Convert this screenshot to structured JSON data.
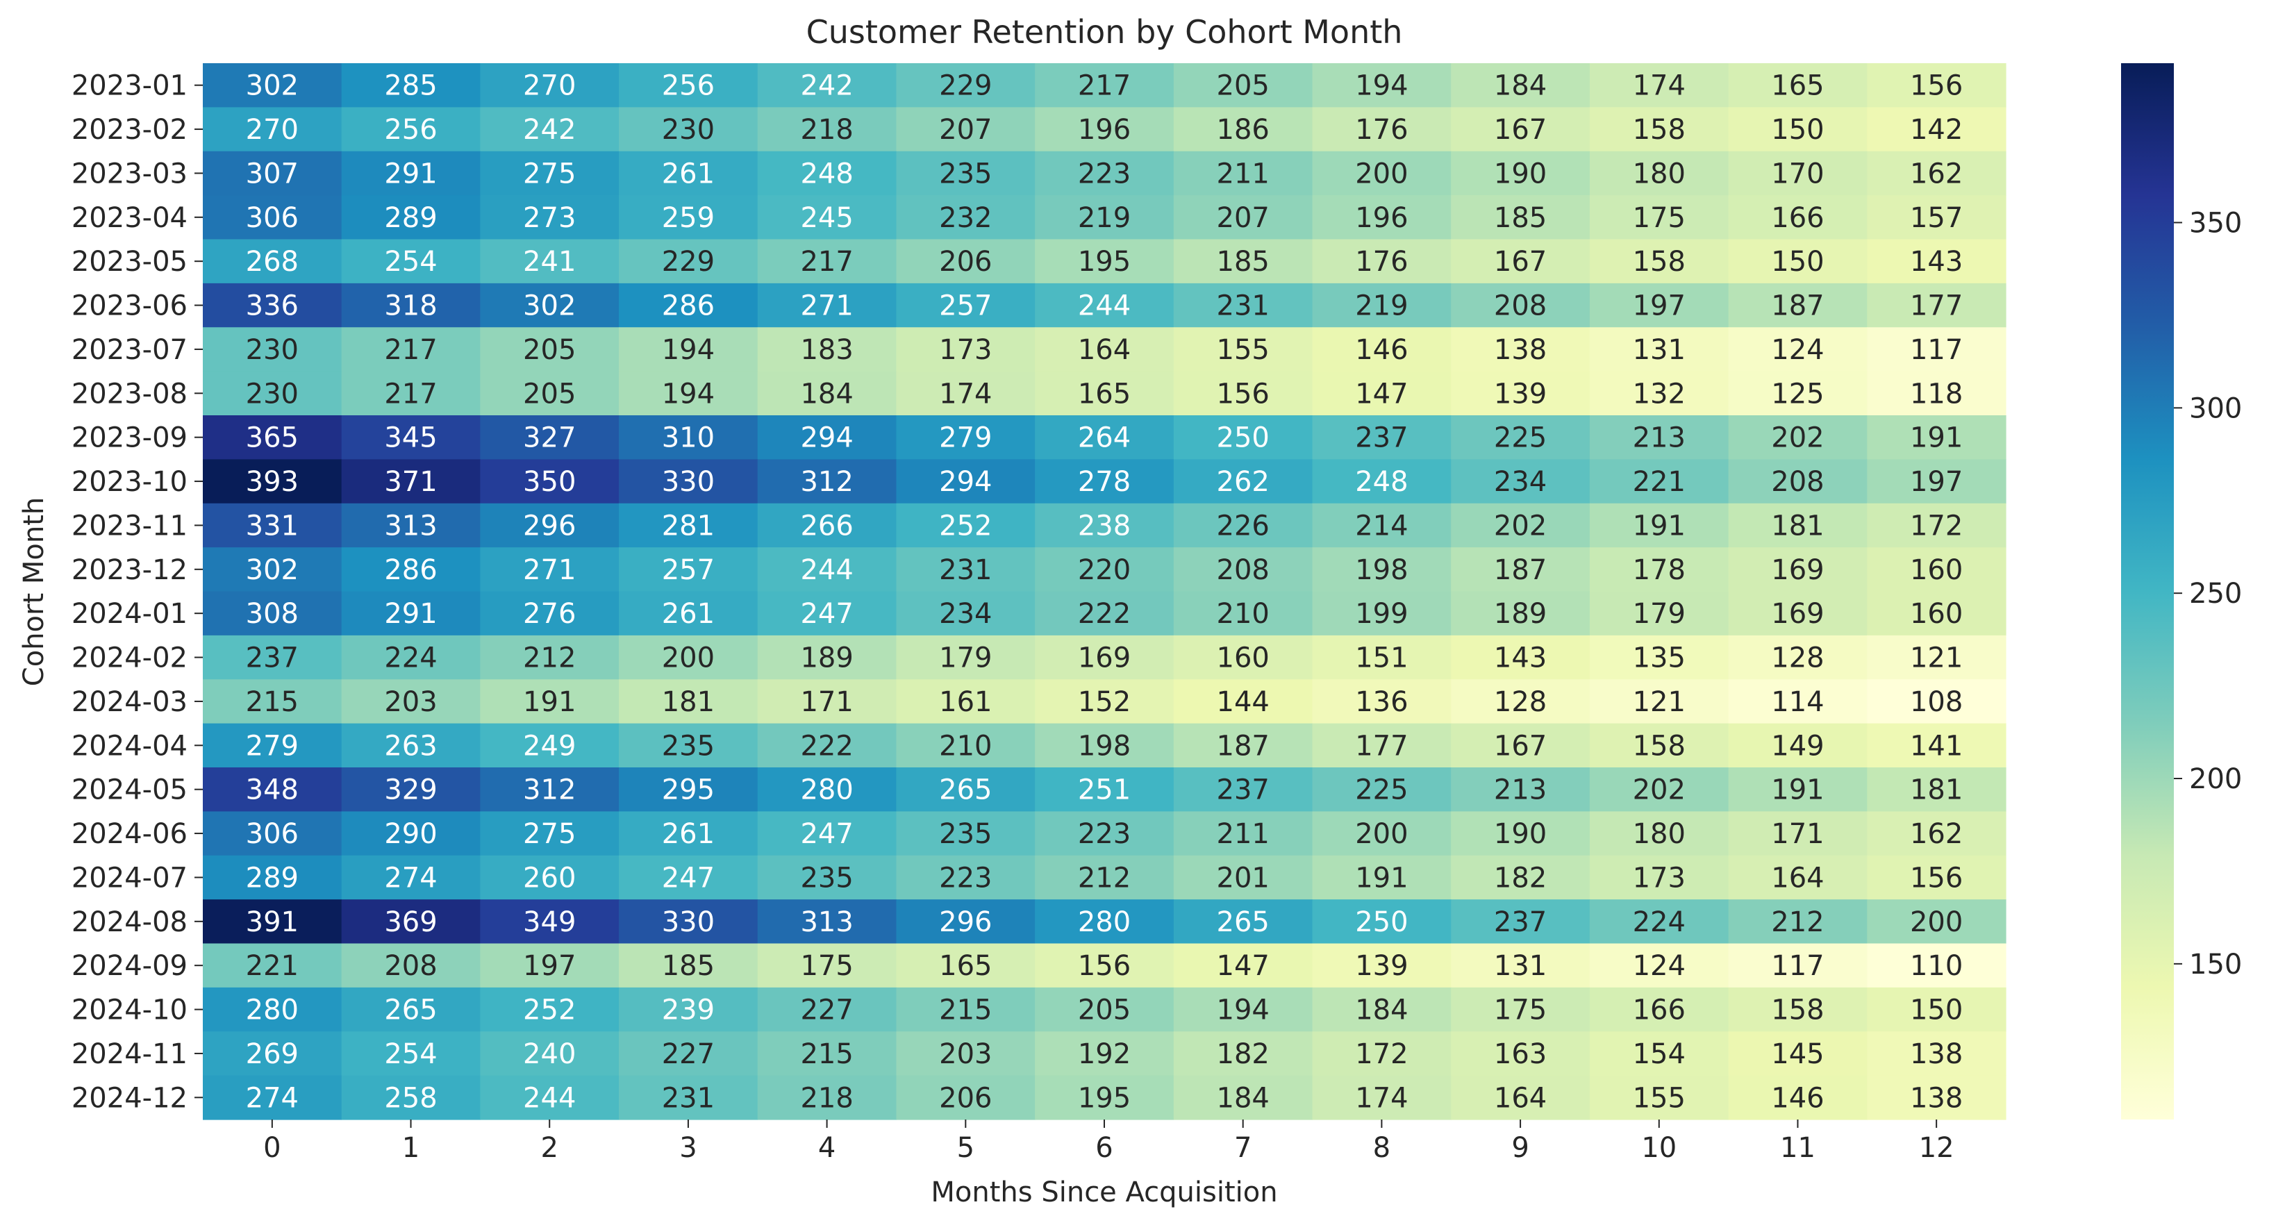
{
  "chart_data": {
    "type": "heatmap",
    "title": "Customer Retention by Cohort Month",
    "xlabel": "Months Since Acquisition",
    "ylabel": "Cohort Month",
    "x": [
      "0",
      "1",
      "2",
      "3",
      "4",
      "5",
      "6",
      "7",
      "8",
      "9",
      "10",
      "11",
      "12"
    ],
    "y": [
      "2023-01",
      "2023-02",
      "2023-03",
      "2023-04",
      "2023-05",
      "2023-06",
      "2023-07",
      "2023-08",
      "2023-09",
      "2023-10",
      "2023-11",
      "2023-12",
      "2024-01",
      "2024-02",
      "2024-03",
      "2024-04",
      "2024-05",
      "2024-06",
      "2024-07",
      "2024-08",
      "2024-09",
      "2024-10",
      "2024-11",
      "2024-12"
    ],
    "values": [
      [
        302,
        285,
        270,
        256,
        242,
        229,
        217,
        205,
        194,
        184,
        174,
        165,
        156
      ],
      [
        270,
        256,
        242,
        230,
        218,
        207,
        196,
        186,
        176,
        167,
        158,
        150,
        142
      ],
      [
        307,
        291,
        275,
        261,
        248,
        235,
        223,
        211,
        200,
        190,
        180,
        170,
        162
      ],
      [
        306,
        289,
        273,
        259,
        245,
        232,
        219,
        207,
        196,
        185,
        175,
        166,
        157
      ],
      [
        268,
        254,
        241,
        229,
        217,
        206,
        195,
        185,
        176,
        167,
        158,
        150,
        143
      ],
      [
        336,
        318,
        302,
        286,
        271,
        257,
        244,
        231,
        219,
        208,
        197,
        187,
        177
      ],
      [
        230,
        217,
        205,
        194,
        183,
        173,
        164,
        155,
        146,
        138,
        131,
        124,
        117
      ],
      [
        230,
        217,
        205,
        194,
        184,
        174,
        165,
        156,
        147,
        139,
        132,
        125,
        118
      ],
      [
        365,
        345,
        327,
        310,
        294,
        279,
        264,
        250,
        237,
        225,
        213,
        202,
        191
      ],
      [
        393,
        371,
        350,
        330,
        312,
        294,
        278,
        262,
        248,
        234,
        221,
        208,
        197
      ],
      [
        331,
        313,
        296,
        281,
        266,
        252,
        238,
        226,
        214,
        202,
        191,
        181,
        172
      ],
      [
        302,
        286,
        271,
        257,
        244,
        231,
        220,
        208,
        198,
        187,
        178,
        169,
        160
      ],
      [
        308,
        291,
        276,
        261,
        247,
        234,
        222,
        210,
        199,
        189,
        179,
        169,
        160
      ],
      [
        237,
        224,
        212,
        200,
        189,
        179,
        169,
        160,
        151,
        143,
        135,
        128,
        121
      ],
      [
        215,
        203,
        191,
        181,
        171,
        161,
        152,
        144,
        136,
        128,
        121,
        114,
        108
      ],
      [
        279,
        263,
        249,
        235,
        222,
        210,
        198,
        187,
        177,
        167,
        158,
        149,
        141
      ],
      [
        348,
        329,
        312,
        295,
        280,
        265,
        251,
        237,
        225,
        213,
        202,
        191,
        181
      ],
      [
        306,
        290,
        275,
        261,
        247,
        235,
        223,
        211,
        200,
        190,
        180,
        171,
        162
      ],
      [
        289,
        274,
        260,
        247,
        235,
        223,
        212,
        201,
        191,
        182,
        173,
        164,
        156
      ],
      [
        391,
        369,
        349,
        330,
        313,
        296,
        280,
        265,
        250,
        237,
        224,
        212,
        200
      ],
      [
        221,
        208,
        197,
        185,
        175,
        165,
        156,
        147,
        139,
        131,
        124,
        117,
        110
      ],
      [
        280,
        265,
        252,
        239,
        227,
        215,
        205,
        194,
        184,
        175,
        166,
        158,
        150
      ],
      [
        269,
        254,
        240,
        227,
        215,
        203,
        192,
        182,
        172,
        163,
        154,
        145,
        138
      ],
      [
        274,
        258,
        244,
        231,
        218,
        206,
        195,
        184,
        174,
        164,
        155,
        146,
        138
      ]
    ],
    "colorbar": {
      "colormap": "YlGnBu",
      "range": [
        108,
        393
      ],
      "ticks": [
        "150",
        "200",
        "250",
        "300",
        "350"
      ]
    },
    "grid": false,
    "legend": "colorbar-right"
  }
}
